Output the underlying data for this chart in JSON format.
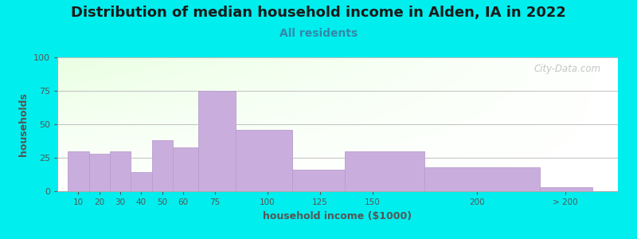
{
  "title": "Distribution of median household income in Alden, IA in 2022",
  "subtitle": "All residents",
  "xlabel": "household income ($1000)",
  "ylabel": "households",
  "background_outer": "#00EEEE",
  "bar_color": "#C9AEDD",
  "bar_edge_color": "#B89ECC",
  "ylim": [
    0,
    100
  ],
  "yticks": [
    0,
    25,
    50,
    75,
    100
  ],
  "tick_labels": [
    "10",
    "20",
    "30",
    "40",
    "50",
    "60",
    "75",
    "100",
    "125",
    "150",
    "200",
    "> 200"
  ],
  "values": [
    30,
    28,
    30,
    14,
    38,
    33,
    75,
    46,
    16,
    30,
    18,
    3
  ],
  "bar_lefts": [
    5,
    15,
    25,
    35,
    45,
    55,
    67,
    85,
    112,
    137,
    175,
    230
  ],
  "bar_widths": [
    10,
    10,
    10,
    10,
    10,
    12,
    18,
    27,
    25,
    38,
    55,
    25
  ],
  "tick_positions": [
    10,
    20,
    30,
    40,
    50,
    60,
    75,
    100,
    125,
    150,
    200,
    242
  ],
  "xlim": [
    0,
    267
  ],
  "title_fontsize": 13,
  "subtitle_fontsize": 10,
  "axis_label_fontsize": 9,
  "watermark": "City-Data.com"
}
